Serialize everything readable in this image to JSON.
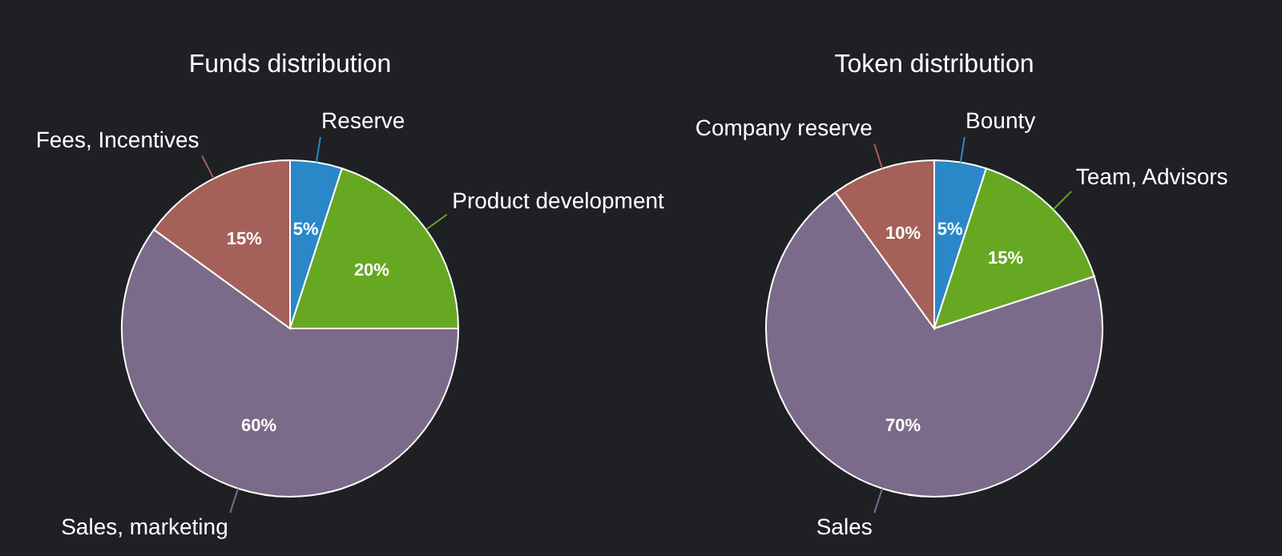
{
  "chart_data": [
    {
      "type": "pie",
      "title": "Funds distribution",
      "categories": [
        "Reserve",
        "Product development",
        "Sales, marketing",
        "Fees, Incentives"
      ],
      "values": [
        5,
        20,
        60,
        15
      ],
      "value_labels": [
        "5%",
        "20%",
        "60%",
        "15%"
      ],
      "colors": [
        "#2a87c8",
        "#66a822",
        "#7c6a8a",
        "#a5605a"
      ],
      "legend": false
    },
    {
      "type": "pie",
      "title": "Token distribution",
      "categories": [
        "Bounty",
        "Team, Advisors",
        "Sales",
        "Company reserve"
      ],
      "values": [
        5,
        15,
        70,
        10
      ],
      "value_labels": [
        "5%",
        "15%",
        "70%",
        "10%"
      ],
      "colors": [
        "#2a87c8",
        "#66a822",
        "#7c6a8a",
        "#a5605a"
      ],
      "legend": false
    }
  ]
}
